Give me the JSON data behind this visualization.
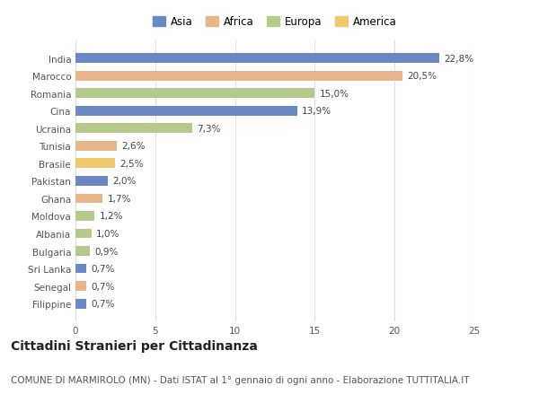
{
  "categories": [
    "India",
    "Marocco",
    "Romania",
    "Cina",
    "Ucraina",
    "Tunisia",
    "Brasile",
    "Pakistan",
    "Ghana",
    "Moldova",
    "Albania",
    "Bulgaria",
    "Sri Lanka",
    "Senegal",
    "Filippine"
  ],
  "values": [
    22.8,
    20.5,
    15.0,
    13.9,
    7.3,
    2.6,
    2.5,
    2.0,
    1.7,
    1.2,
    1.0,
    0.9,
    0.7,
    0.7,
    0.7
  ],
  "labels": [
    "22,8%",
    "20,5%",
    "15,0%",
    "13,9%",
    "7,3%",
    "2,6%",
    "2,5%",
    "2,0%",
    "1,7%",
    "1,2%",
    "1,0%",
    "0,9%",
    "0,7%",
    "0,7%",
    "0,7%"
  ],
  "continents": [
    "Asia",
    "Africa",
    "Europa",
    "Asia",
    "Europa",
    "Africa",
    "America",
    "Asia",
    "Africa",
    "Europa",
    "Europa",
    "Europa",
    "Asia",
    "Africa",
    "Asia"
  ],
  "continent_colors": {
    "Asia": "#6b87c4",
    "Africa": "#e8b48a",
    "Europa": "#b5c98a",
    "America": "#f0c96e"
  },
  "legend_order": [
    "Asia",
    "Africa",
    "Europa",
    "America"
  ],
  "title": "Cittadini Stranieri per Cittadinanza",
  "subtitle": "COMUNE DI MARMIROLO (MN) - Dati ISTAT al 1° gennaio di ogni anno - Elaborazione TUTTITALIA.IT",
  "xlim": [
    0,
    25
  ],
  "xticks": [
    0,
    5,
    10,
    15,
    20,
    25
  ],
  "background_color": "#ffffff",
  "grid_color": "#e0e0e0",
  "bar_height": 0.55,
  "label_fontsize": 7.5,
  "title_fontsize": 10,
  "subtitle_fontsize": 7.5,
  "tick_fontsize": 7.5,
  "legend_fontsize": 8.5
}
